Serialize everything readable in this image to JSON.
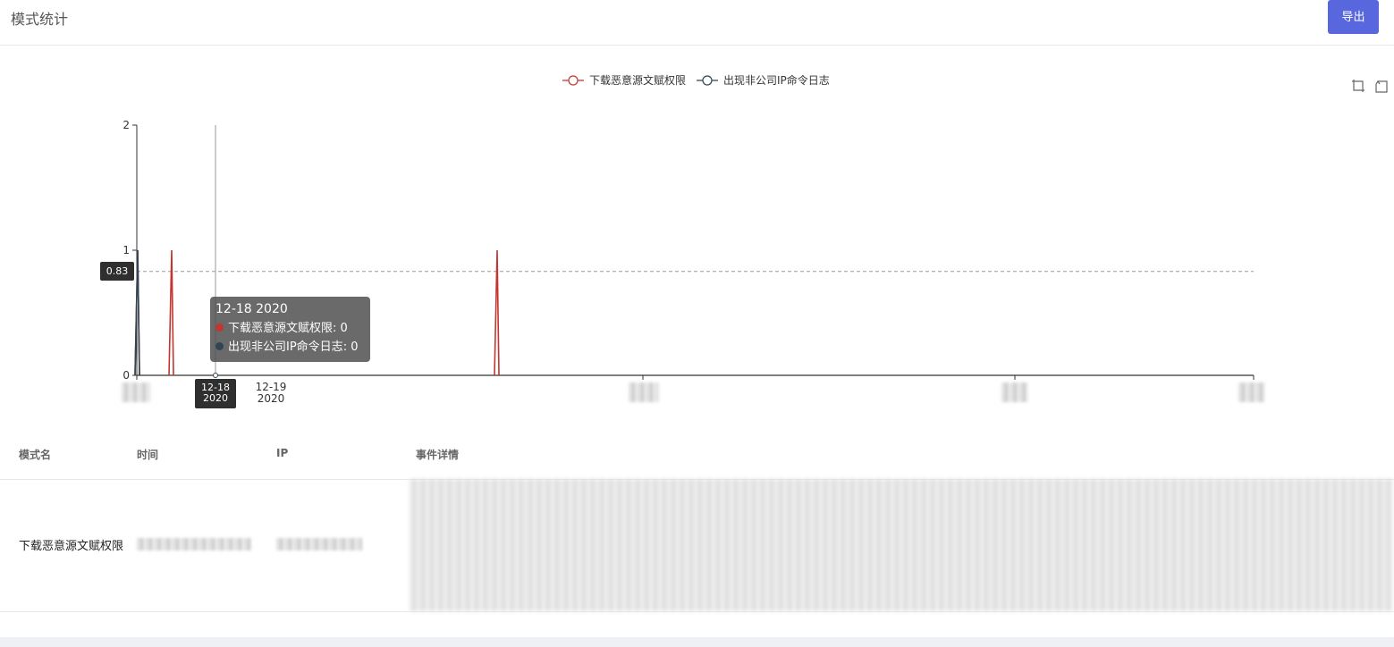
{
  "header": {
    "title": "模式统计",
    "export_label": "导出"
  },
  "colors": {
    "accent": "#5867dd",
    "series_red": "#c23531",
    "series_dark": "#2f4554"
  },
  "chart_data": {
    "type": "line",
    "legend": [
      "下载恶意源文赋权限",
      "出现非公司IP命令日志"
    ],
    "legend_position": "top-center",
    "y_ticks": [
      "0",
      "1",
      "2"
    ],
    "ylim": [
      0,
      2
    ],
    "x_ticks_visible": [
      {
        "label": "12-18",
        "sub": "2020"
      },
      {
        "label": "12-19",
        "sub": "2020"
      }
    ],
    "series": [
      {
        "name": "下载恶意源文赋权限",
        "color": "#c23531",
        "points": [
          {
            "x": "12-16 2020",
            "y": 1
          },
          {
            "x": "12-17 2020",
            "y": 1
          },
          {
            "x": "12-22 2020",
            "y": 1
          }
        ]
      },
      {
        "name": "出现非公司IP命令日志",
        "color": "#2f4554",
        "points": [
          {
            "x": "12-16 2020",
            "y": 1
          }
        ]
      }
    ],
    "mark_line_value": "0.83",
    "axis_pointer": {
      "x_label": "12-18",
      "x_sub": "2020"
    },
    "tooltip": {
      "title": "12-18 2020",
      "rows": [
        {
          "name": "下载恶意源文赋权限",
          "value": "0",
          "color": "#c23531"
        },
        {
          "name": "出现非公司IP命令日志",
          "value": "0",
          "color": "#2f4554"
        }
      ]
    },
    "grid": false
  },
  "toolbar": {
    "icons": [
      "zoom-icon",
      "zoom-reset-icon"
    ]
  },
  "table": {
    "columns": [
      "模式名",
      "时间",
      "IP",
      "事件详情"
    ],
    "rows": [
      {
        "pattern": "下载恶意源文赋权限"
      }
    ]
  }
}
